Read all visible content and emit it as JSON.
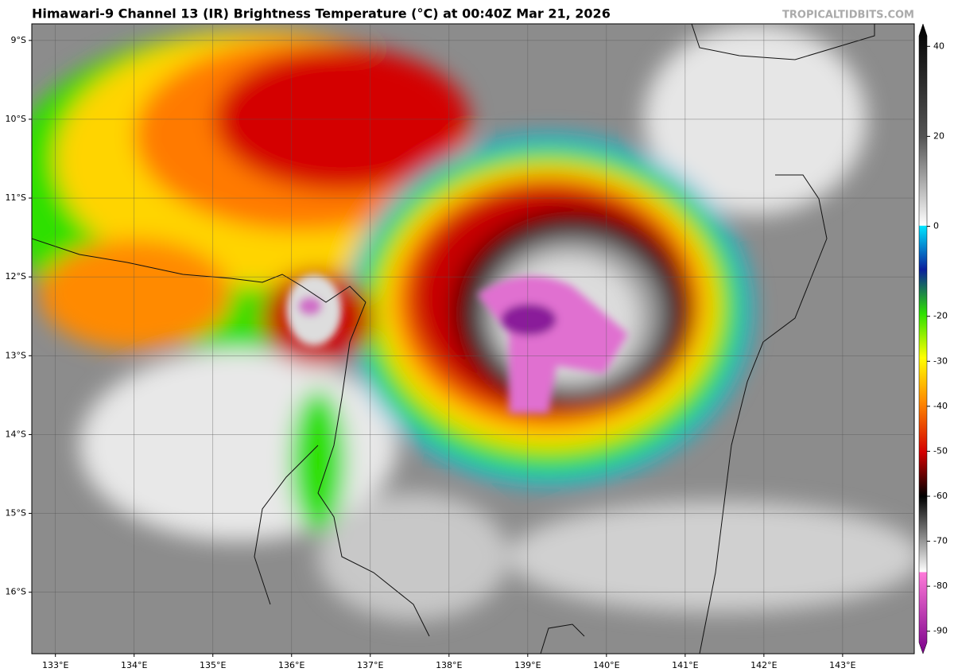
{
  "header": {
    "title": "Himawari-9 Channel 13 (IR) Brightness Temperature (°C) at 00:40Z Mar 21, 2026",
    "credit": "TROPICALTIDBITS.COM"
  },
  "map": {
    "lon_range": [
      132.7,
      143.91
    ],
    "lat_range": [
      -16.78,
      -8.79
    ],
    "lat_ticks": [
      {
        "value": -9,
        "label": "9°S"
      },
      {
        "value": -10,
        "label": "10°S"
      },
      {
        "value": -11,
        "label": "11°S"
      },
      {
        "value": -12,
        "label": "12°S"
      },
      {
        "value": -13,
        "label": "13°S"
      },
      {
        "value": -14,
        "label": "14°S"
      },
      {
        "value": -15,
        "label": "15°S"
      },
      {
        "value": -16,
        "label": "16°S"
      }
    ],
    "lon_ticks": [
      {
        "value": 133,
        "label": "133°E"
      },
      {
        "value": 134,
        "label": "134°E"
      },
      {
        "value": 135,
        "label": "135°E"
      },
      {
        "value": 136,
        "label": "136°E"
      },
      {
        "value": 137,
        "label": "137°E"
      },
      {
        "value": 138,
        "label": "138°E"
      },
      {
        "value": 139,
        "label": "139°E"
      },
      {
        "value": 140,
        "label": "140°E"
      },
      {
        "value": 141,
        "label": "141°E"
      },
      {
        "value": 142,
        "label": "142°E"
      },
      {
        "value": 143,
        "label": "143°E"
      }
    ]
  },
  "colorbar": {
    "range": [
      -95,
      45
    ],
    "ticks": [
      40,
      20,
      0,
      -20,
      -30,
      -40,
      -50,
      -60,
      -70,
      -80,
      -90
    ]
  }
}
